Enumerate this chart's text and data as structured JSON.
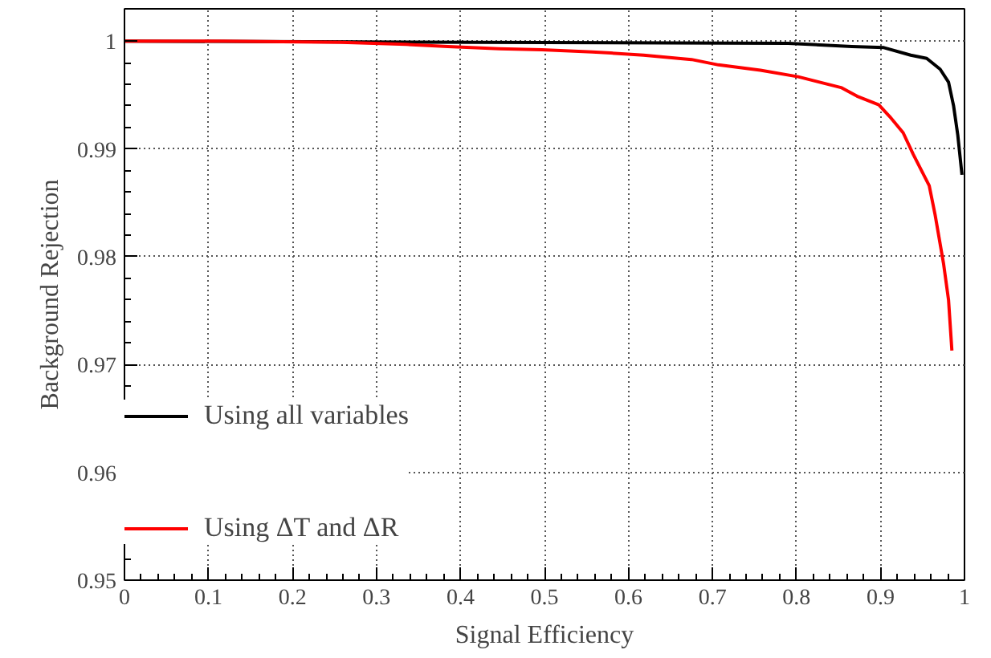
{
  "chart_data": {
    "type": "line",
    "xlabel": "Signal Efficiency",
    "ylabel": "Background Rejection",
    "xlim": [
      0,
      1
    ],
    "ylim": [
      0.95,
      1.003
    ],
    "xticks": [
      0,
      0.1,
      0.2,
      0.3,
      0.4,
      0.5,
      0.6,
      0.7,
      0.8,
      0.9,
      1
    ],
    "yticks": [
      0.95,
      0.96,
      0.97,
      0.98,
      0.99,
      1
    ],
    "grid": true,
    "legend": "bottom left",
    "marker": "none",
    "line_style": "solid",
    "series": [
      {
        "name": "Using all variables",
        "color": "#000000",
        "x": [
          0,
          0.79,
          0.866,
          0.904,
          0.936,
          0.955,
          0.971,
          0.981,
          0.987,
          0.992,
          0.997
        ],
        "values": [
          1.0,
          0.9998,
          0.9995,
          0.9994,
          0.9987,
          0.9984,
          0.9974,
          0.9962,
          0.994,
          0.9913,
          0.9876
        ]
      },
      {
        "name": "Using ΔT and ΔR",
        "color": "#ff0000",
        "x": [
          0,
          0.117,
          0.258,
          0.335,
          0.385,
          0.446,
          0.497,
          0.557,
          0.579,
          0.618,
          0.675,
          0.707,
          0.757,
          0.802,
          0.853,
          0.872,
          0.898,
          0.911,
          0.927,
          0.939,
          0.958,
          0.965,
          0.975,
          0.981,
          0.985
        ],
        "values": [
          1.0,
          1.0,
          0.9999,
          0.9997,
          0.9995,
          0.9993,
          0.9992,
          0.999,
          0.9989,
          0.9987,
          0.9983,
          0.9978,
          0.9973,
          0.9967,
          0.9957,
          0.9949,
          0.9941,
          0.993,
          0.9915,
          0.9895,
          0.9866,
          0.9839,
          0.9794,
          0.976,
          0.9713
        ]
      }
    ]
  }
}
